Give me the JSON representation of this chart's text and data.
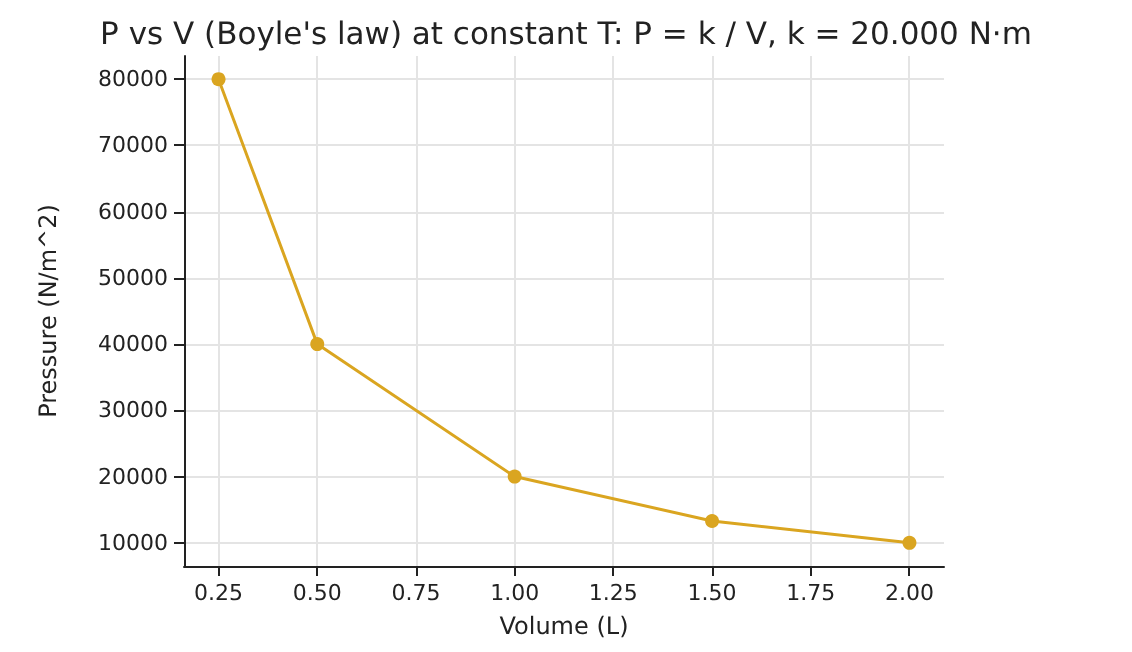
{
  "chart_data": {
    "type": "line",
    "title": "P vs V (Boyle's law) at constant T: P = k / V, k = 20.000 N·m",
    "xlabel": "Volume (L)",
    "ylabel": "Pressure (N/m^2)",
    "x": [
      0.25,
      0.5,
      1.0,
      1.5,
      2.0
    ],
    "series": [
      {
        "color": "#daa520",
        "values": [
          80000,
          40000,
          20000,
          13300,
          10000
        ]
      }
    ],
    "xlim": [
      0.1625,
      2.0875
    ],
    "xticks": [
      0.25,
      {
        "value": 0.5,
        "label": "0.50"
      },
      0.75,
      {
        "value": 1.0,
        "label": "1.00"
      },
      1.25,
      {
        "value": 1.5,
        "label": "1.50"
      },
      1.75,
      {
        "value": 2.0,
        "label": "2.00"
      }
    ],
    "ylim": [
      6500,
      83500
    ],
    "yticks": [
      10000,
      20000,
      30000,
      40000,
      50000,
      60000,
      70000,
      80000
    ],
    "grid": true,
    "marker": "circle",
    "line_style": "solid"
  }
}
